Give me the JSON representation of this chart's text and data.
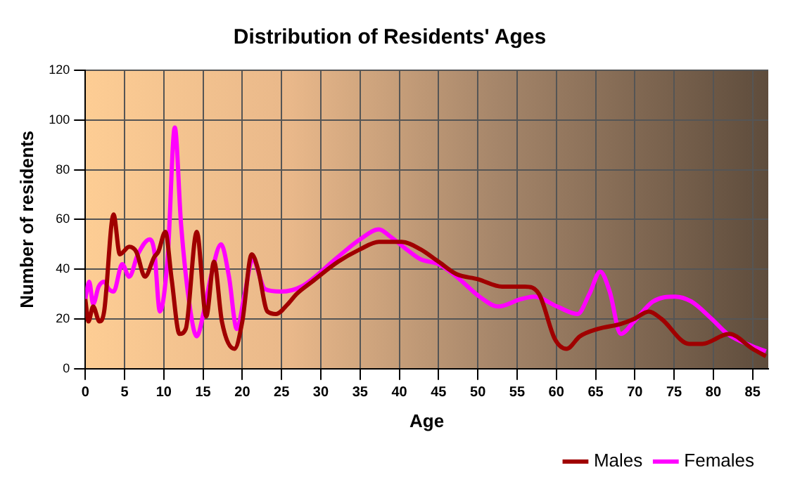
{
  "chart_data": {
    "type": "line",
    "title": "Distribution of Residents' Ages",
    "xlabel": "Age",
    "ylabel": "Number of residents",
    "xlim": [
      0,
      87
    ],
    "xticks": [
      0,
      5,
      10,
      15,
      20,
      25,
      30,
      35,
      40,
      45,
      50,
      55,
      60,
      65,
      70,
      75,
      80,
      85
    ],
    "ylim": [
      0,
      120
    ],
    "yticks": [
      0,
      20,
      40,
      60,
      80,
      100,
      120
    ],
    "grid": true,
    "legend": "bottom right",
    "marker": "none",
    "line_style": "solid",
    "series": [
      {
        "name": "Males",
        "color": "#a00000",
        "x": [
          0,
          0.4,
          1,
          1.8,
          2.4,
          3.6,
          4.4,
          5.6,
          6.5,
          7.6,
          8.8,
          9.3,
          10.2,
          11,
          12,
          12.8,
          14.2,
          15.4,
          16.4,
          17.4,
          19,
          20,
          21.2,
          22,
          23.2,
          24.3,
          25.8,
          26.9,
          28.9,
          32.2,
          35,
          37.4,
          40.3,
          42.7,
          45,
          47.3,
          50,
          53.1,
          56,
          57.8,
          59.8,
          61.3,
          63,
          65.3,
          68.2,
          69.9,
          71.8,
          73.4,
          76.9,
          78.6,
          82,
          85,
          86.7
        ],
        "values": [
          28,
          19,
          25,
          19,
          23,
          62,
          46,
          49,
          47,
          37,
          45,
          47,
          55,
          36,
          14,
          16,
          55,
          21,
          43,
          19,
          8,
          19,
          46,
          40,
          23,
          22,
          26,
          30,
          35,
          43,
          48,
          51,
          51,
          48,
          43,
          38,
          36,
          33,
          33,
          30,
          12,
          8,
          13,
          16,
          18,
          20,
          23,
          20,
          10,
          10,
          14,
          8,
          5
        ]
      },
      {
        "name": "Females",
        "color": "#ff00ff",
        "x": [
          0,
          0.5,
          1,
          1.7,
          2.4,
          3,
          3.6,
          4.7,
          5.6,
          6.7,
          8.2,
          8.8,
          9.5,
          10.5,
          11.4,
          12.2,
          13.4,
          14.2,
          15.1,
          16,
          17.3,
          18.3,
          19.3,
          20.3,
          21.3,
          22.9,
          24.9,
          27.5,
          32.2,
          35,
          37.4,
          38.9,
          40.9,
          42.7,
          45,
          47.3,
          50.2,
          52.6,
          55.5,
          57.2,
          60.1,
          62.7,
          64.2,
          65.6,
          66.8,
          68.2,
          69.9,
          72.3,
          75.1,
          77.2,
          79.8,
          81.8,
          85,
          86.7
        ],
        "values": [
          28,
          35,
          26,
          33,
          35,
          32,
          31,
          42,
          37,
          46,
          52,
          47,
          23,
          45,
          97,
          58,
          23,
          13,
          23,
          37,
          50,
          37,
          16,
          30,
          44,
          32,
          31,
          33,
          45,
          52,
          56,
          53,
          48,
          44,
          42,
          37,
          29,
          25,
          28,
          29,
          25,
          22,
          30,
          39,
          31,
          14,
          19,
          27,
          29,
          27,
          20,
          14,
          9,
          7
        ]
      }
    ]
  }
}
